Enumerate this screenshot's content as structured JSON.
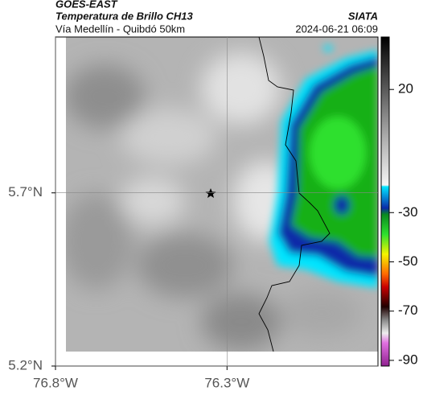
{
  "header": {
    "title": "GOES-EAST",
    "subtitle": "Temperatura de Brillo CH13",
    "route": "Vía Medellín - Quibdó 50km",
    "source": "SIATA",
    "timestamp": "2024-06-21 06:09"
  },
  "chart_data": {
    "type": "map",
    "xlim": [
      -76.8,
      -75.86
    ],
    "ylim": [
      5.2,
      6.15
    ],
    "xticks": [
      {
        "value": -76.8,
        "label": "76.8°W"
      },
      {
        "value": -76.3,
        "label": "76.3°W"
      }
    ],
    "yticks": [
      {
        "value": 5.2,
        "label": "5.2°N"
      },
      {
        "value": 5.7,
        "label": "5.7°N"
      }
    ],
    "grid": true,
    "colorbar": {
      "clim": [
        -92.3,
        41.3
      ],
      "ticks": [
        20,
        -30,
        -50,
        -70,
        -90
      ]
    }
  }
}
